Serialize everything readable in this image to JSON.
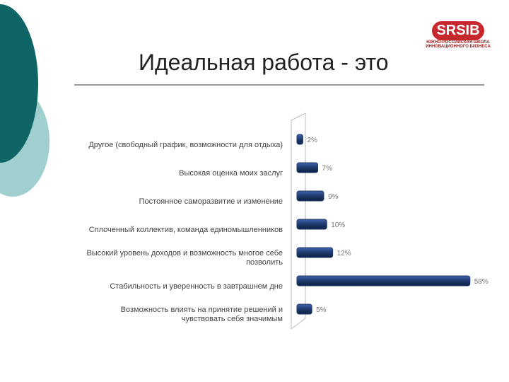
{
  "chart_data": {
    "type": "bar",
    "orientation": "horizontal",
    "title": "Идеальная работа - это",
    "logo": {
      "name": "SRSIB",
      "lines": [
        "ЮЖНО-РОССИЙСКАЯ ШКОЛА",
        "ИННОВАЦИОННОГО БИЗНЕСА"
      ]
    },
    "categories": [
      "Другое (свободный график, возможности для отдыха)",
      "Высокая оценка моих заслуг",
      "Постоянное саморазвитие и изменение",
      "Сплоченный коллектив, команда единомышленников",
      "Высокий уровень доходов и возможность многое себе позволить",
      "Стабильность и уверенность в завтрашнем дне",
      "Возможность влиять на принятие решений и чувствовать себя значимым"
    ],
    "values": [
      2,
      7,
      9,
      10,
      12,
      58,
      5
    ],
    "value_labels": [
      "2%",
      "7%",
      "9%",
      "10%",
      "12%",
      "58%",
      "5%"
    ],
    "color": "#1f3a6e"
  }
}
